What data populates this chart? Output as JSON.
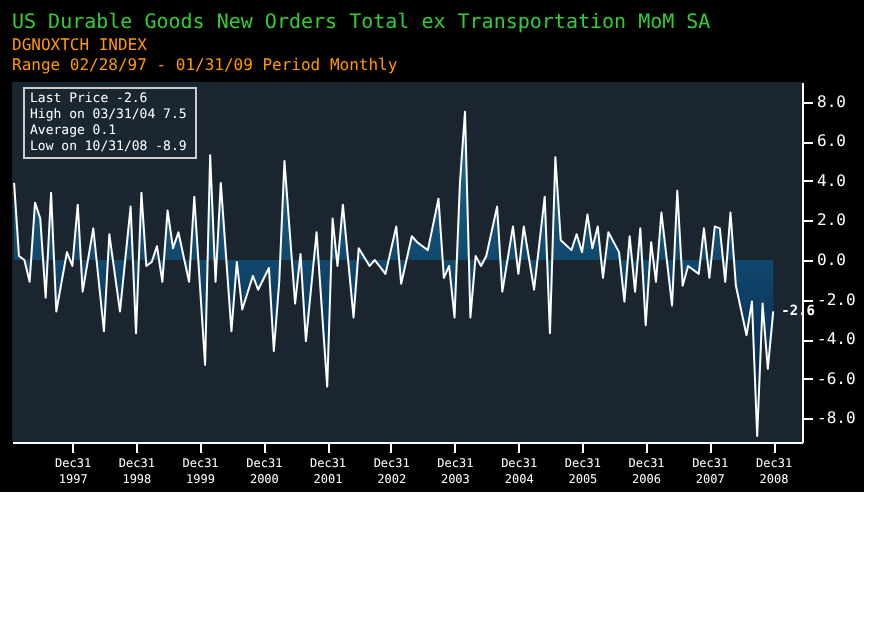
{
  "chart_data": {
    "type": "area",
    "title": "US Durable Goods New Orders Total ex Transportation MoM SA",
    "subtitle": [
      "DGNOXTCH INDEX",
      "Range 02/28/97 - 01/31/09   Period Monthly"
    ],
    "annotations": [
      "Last Price -2.6",
      "High on 03/31/04 7.5",
      "Average 0.1",
      "Low on 10/31/08 -8.9",
      {
        "text": "-2.6",
        "x": "2009-01",
        "y": -2.6
      }
    ],
    "series": [
      {
        "color": "#1f6f8f",
        "x": [
          "1997-02",
          "1997-03",
          "1997-04",
          "1997-05",
          "1997-06",
          "1997-07",
          "1997-08",
          "1997-09",
          "1997-10",
          "1997-12",
          "1998-01",
          "1998-02",
          "1998-03",
          "1998-05",
          "1998-07",
          "1998-08",
          "1998-10",
          "1998-12",
          "1999-01",
          "1999-02",
          "1999-03",
          "1999-04",
          "1999-05",
          "1999-06",
          "1999-07",
          "1999-08",
          "1999-09",
          "1999-11",
          "1999-12",
          "2000-01",
          "2000-02",
          "2000-03",
          "2000-04",
          "2000-05",
          "2000-07",
          "2000-08",
          "2000-09",
          "2000-11",
          "2000-12",
          "2001-02",
          "2001-03",
          "2001-04",
          "2001-05",
          "2001-07",
          "2001-08",
          "2001-09",
          "2001-11",
          "2002-01",
          "2002-02",
          "2002-03",
          "2002-04",
          "2002-06",
          "2002-07",
          "2002-09",
          "2002-10",
          "2002-12",
          "2003-02",
          "2003-03",
          "2003-05",
          "2003-06",
          "2003-08",
          "2003-10",
          "2003-11",
          "2003-12",
          "2004-01",
          "2004-02",
          "2004-03",
          "2004-04",
          "2004-05",
          "2004-06",
          "2004-07",
          "2004-09",
          "2004-10",
          "2004-12",
          "2005-01",
          "2005-02",
          "2005-04",
          "2005-06",
          "2005-07",
          "2005-08",
          "2005-09",
          "2005-11",
          "2005-12",
          "2006-01",
          "2006-02",
          "2006-03",
          "2006-04",
          "2006-05",
          "2006-06",
          "2006-08",
          "2006-09",
          "2006-10",
          "2006-11",
          "2006-12",
          "2007-01",
          "2007-02",
          "2007-03",
          "2007-04",
          "2007-06",
          "2007-07",
          "2007-08",
          "2007-09",
          "2007-11",
          "2007-12",
          "2008-01",
          "2008-02",
          "2008-03",
          "2008-04",
          "2008-05",
          "2008-06",
          "2008-08",
          "2008-09",
          "2008-10",
          "2008-11",
          "2008-12",
          "2009-01"
        ],
        "values": [
          3.9,
          0.2,
          0.0,
          -1.1,
          2.9,
          2.1,
          -1.9,
          3.4,
          -2.6,
          0.4,
          -0.3,
          2.8,
          -1.6,
          1.6,
          -3.6,
          1.3,
          -2.6,
          2.7,
          -3.7,
          3.4,
          -0.3,
          -0.1,
          0.7,
          -1.1,
          2.5,
          0.6,
          1.4,
          -1.1,
          3.2,
          -1.1,
          -5.3,
          5.3,
          -1.1,
          3.9,
          -3.6,
          -0.1,
          -2.5,
          -0.8,
          -1.5,
          -0.4,
          -4.6,
          -1.1,
          5.0,
          -2.2,
          0.3,
          -4.1,
          1.4,
          -6.4,
          2.1,
          -0.3,
          2.8,
          -2.9,
          0.6,
          -0.3,
          0.0,
          -0.7,
          1.7,
          -1.2,
          1.2,
          0.9,
          0.5,
          3.1,
          -0.9,
          -0.3,
          -2.9,
          3.9,
          7.5,
          -2.9,
          0.2,
          -0.3,
          0.2,
          2.7,
          -1.6,
          1.7,
          -0.7,
          1.7,
          -1.5,
          3.2,
          -3.7,
          5.2,
          1.0,
          0.5,
          1.3,
          0.4,
          2.3,
          0.6,
          1.7,
          -0.9,
          1.4,
          0.4,
          -2.1,
          1.2,
          -1.6,
          1.6,
          -3.3,
          0.9,
          -1.1,
          2.4,
          -2.3,
          3.5,
          -1.3,
          -0.3,
          -0.7,
          1.6,
          -0.9,
          1.7,
          1.6,
          -1.1,
          2.4,
          -1.3,
          -3.8,
          -2.1,
          -8.9,
          -2.2,
          -5.5,
          -2.6
        ]
      }
    ],
    "xlim": [
      "1997-01-20",
      "2009-06-15"
    ],
    "xticks": [
      {
        "value": "1997-12-31",
        "label": "Dec31 1997"
      },
      {
        "value": "1998-12-31",
        "label": "Dec31 1998"
      },
      {
        "value": "1999-12-31",
        "label": "Dec31 1999"
      },
      {
        "value": "2000-12-31",
        "label": "Dec31 2000"
      },
      {
        "value": "2001-12-31",
        "label": "Dec31 2001"
      },
      {
        "value": "2002-12-31",
        "label": "Dec31 2002"
      },
      {
        "value": "2003-12-31",
        "label": "Dec31 2003"
      },
      {
        "value": "2004-12-31",
        "label": "Dec31 2004"
      },
      {
        "value": "2005-12-31",
        "label": "Dec31 2005"
      },
      {
        "value": "2006-12-31",
        "label": "Dec31 2006"
      },
      {
        "value": "2007-12-31",
        "label": "Dec31 2007"
      },
      {
        "value": "2008-12-31",
        "label": "Dec31 2008"
      }
    ],
    "ylim": [
      -9.2,
      9
    ],
    "yticks": [
      {
        "value": -8,
        "label": "-8.0"
      },
      {
        "value": -6,
        "label": "-6.0"
      },
      {
        "value": -4,
        "label": "-4.0"
      },
      {
        "value": -2,
        "label": "-2.0"
      },
      {
        "value": 0,
        "label": "0.0"
      },
      {
        "value": 2,
        "label": "2.0"
      },
      {
        "value": 4,
        "label": "4.0"
      },
      {
        "value": 6,
        "label": "6.0"
      },
      {
        "value": 8,
        "label": "8.0"
      }
    ],
    "grid": false
  }
}
